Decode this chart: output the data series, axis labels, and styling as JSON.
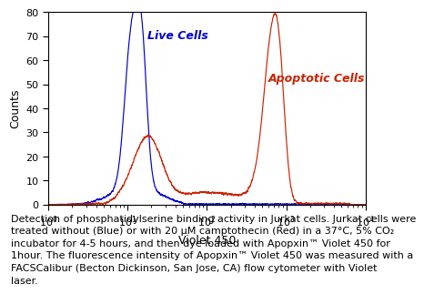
{
  "title": "",
  "xlabel": "Violet 450",
  "ylabel": "Counts",
  "ylim": [
    0,
    80
  ],
  "yticks": [
    0,
    10,
    20,
    30,
    40,
    50,
    60,
    70,
    80
  ],
  "blue_label": "Live Cells",
  "red_label": "Apoptotic Cells",
  "blue_color": "#0000cc",
  "red_color": "#cc2200",
  "bg_color": "#ffffff",
  "caption_line1": "Detection of phosphatidylserine binding activity in Jurkat cells. Jurkat cells were",
  "caption_line2": "treated without (Blue) or with 20 μM camptothecin (Red) in a 37°C, 5% CO₂",
  "caption_line3": "incubator for 4-5 hours, and then dye loaded with Apopxin™ Violet 450 for",
  "caption_line4": "1hour. The fluorescence intensity of Apopxin™ Violet 450 was measured with a",
  "caption_line5": "FACSCalibur (Becton Dickinson, San Jose, CA) flow cytometer with Violet",
  "caption_line6": "laser.",
  "caption_fontsize": 8.0
}
